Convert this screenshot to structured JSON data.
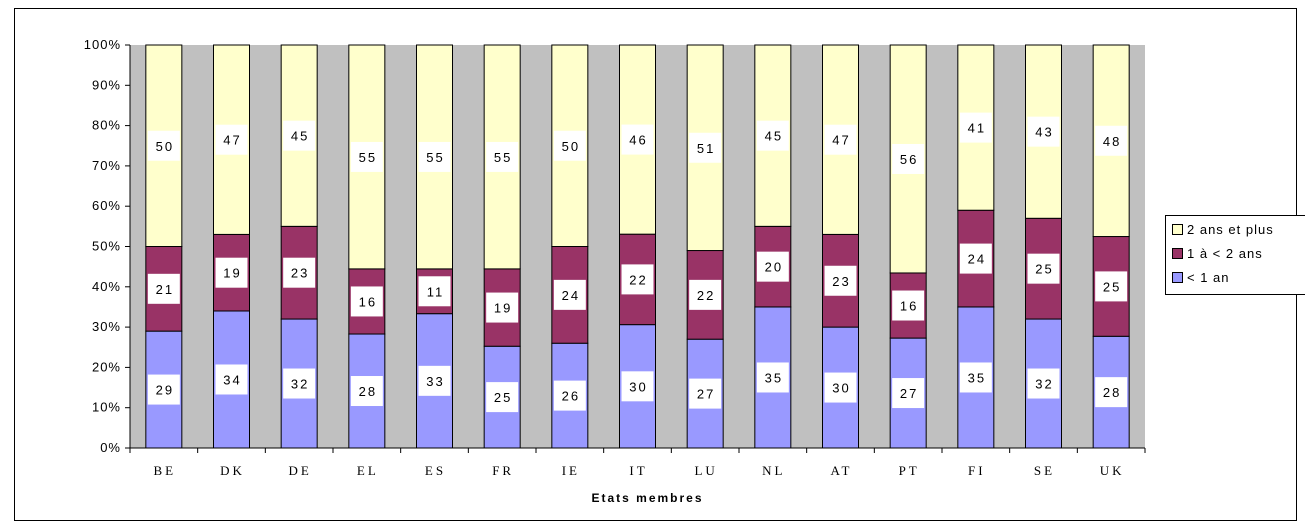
{
  "chart_data": {
    "type": "bar",
    "stacked": true,
    "percent_stacked": true,
    "title": "",
    "xlabel": "Etats membres",
    "ylabel": "",
    "ylim": [
      0,
      100
    ],
    "yticks": [
      "0%",
      "10%",
      "20%",
      "30%",
      "40%",
      "50%",
      "60%",
      "70%",
      "80%",
      "90%",
      "100%"
    ],
    "categories": [
      "BE",
      "DK",
      "DE",
      "EL",
      "ES",
      "FR",
      "IE",
      "IT",
      "LU",
      "NL",
      "AT",
      "PT",
      "FI",
      "SE",
      "UK"
    ],
    "series": [
      {
        "name": "< 1 an",
        "color": "#9999ff",
        "values": [
          29,
          34,
          32,
          28,
          33,
          25,
          26,
          30,
          27,
          35,
          30,
          27,
          35,
          32,
          28
        ]
      },
      {
        "name": "1 à < 2 ans",
        "color": "#993366",
        "values": [
          21,
          19,
          23,
          16,
          11,
          19,
          24,
          22,
          22,
          20,
          23,
          16,
          24,
          25,
          25
        ]
      },
      {
        "name": "2 ans et plus",
        "color": "#ffffcc",
        "values": [
          50,
          47,
          45,
          55,
          55,
          55,
          50,
          46,
          51,
          45,
          47,
          56,
          41,
          43,
          48
        ]
      }
    ],
    "plot_background": "#c0c0c0",
    "grid": false,
    "legend_position": "right"
  }
}
